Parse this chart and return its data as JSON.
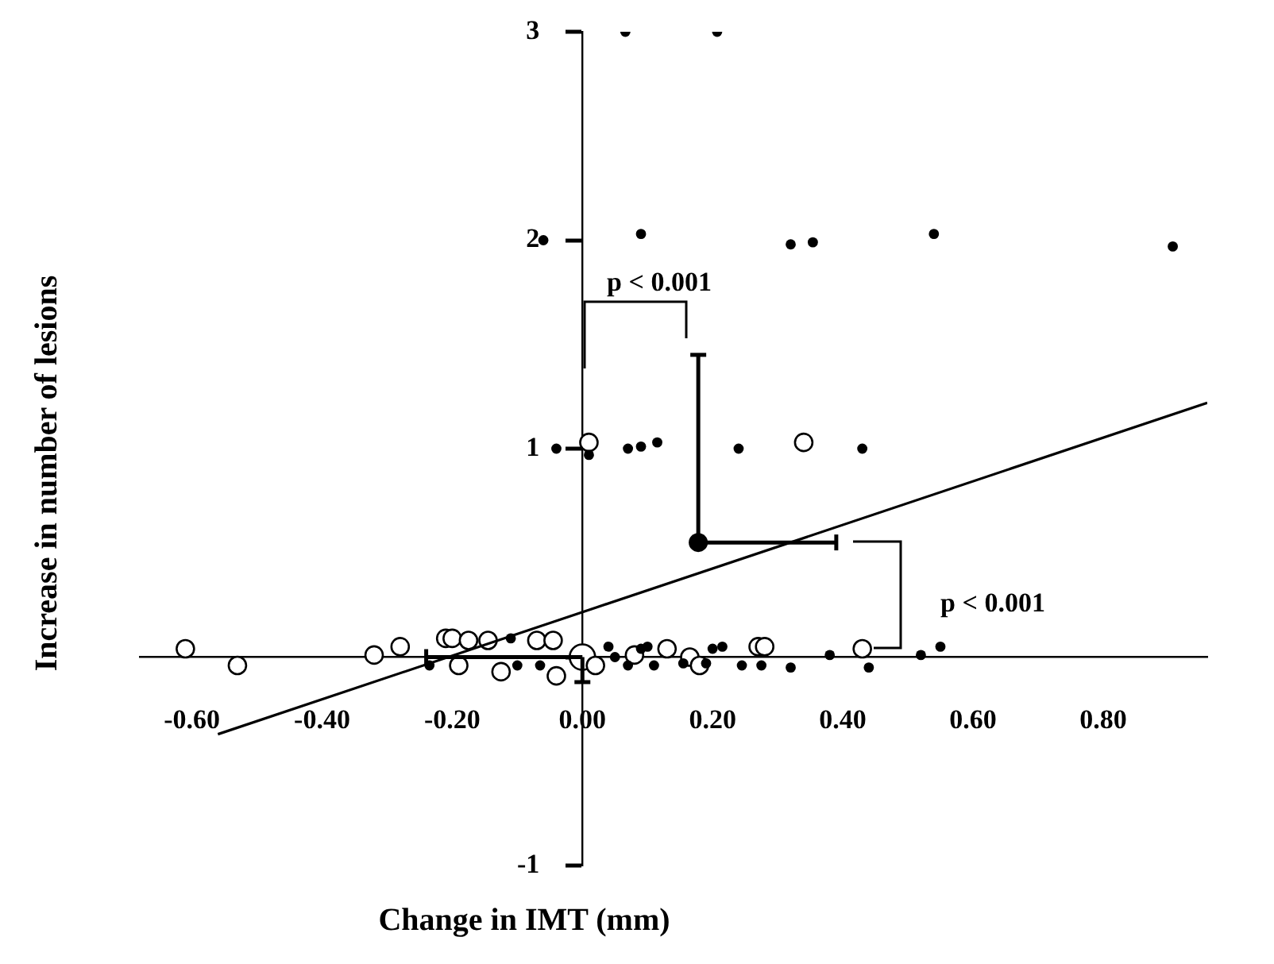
{
  "chart_data": {
    "type": "scatter",
    "xlabel": "Change in IMT (mm)",
    "ylabel": "Increase in number of lesions",
    "xlim": [
      -0.68,
      0.96
    ],
    "ylim": [
      -1,
      3
    ],
    "xticks": [
      {
        "value": -0.6,
        "label": "-0.60"
      },
      {
        "value": -0.4,
        "label": "-0.40"
      },
      {
        "value": -0.2,
        "label": "-0.20"
      },
      {
        "value": 0,
        "label": "0.00"
      },
      {
        "value": 0.2,
        "label": "0.20"
      },
      {
        "value": 0.4,
        "label": "0.40"
      },
      {
        "value": 0.6,
        "label": "0.60"
      },
      {
        "value": 0.8,
        "label": "0.80"
      }
    ],
    "yticks": [
      -1,
      {
        "value": 0,
        "label": null
      },
      1,
      2,
      3
    ],
    "annotations": [
      "p < 0.001",
      "p < 0.001"
    ],
    "series": [
      {
        "type": "scatter",
        "marker": "circle",
        "color": "#000000",
        "x": [
          0.066,
          0.207,
          -0.06,
          0.09,
          0.32,
          0.354,
          0.54,
          0.907,
          -0.04,
          0.01,
          0.07,
          0.09,
          0.115,
          0.24,
          0.43,
          -0.235,
          -0.11,
          -0.1,
          -0.065,
          0.04,
          0.05,
          0.07,
          0.09,
          0.1,
          0.11,
          0.155,
          0.19,
          0.2,
          0.215,
          0.245,
          0.275,
          0.32,
          0.38,
          0.44,
          0.52,
          0.55
        ],
        "values": [
          3,
          3,
          2,
          2.03,
          1.98,
          1.99,
          2.03,
          1.97,
          1,
          0.97,
          1,
          1.01,
          1.03,
          1,
          1,
          -0.04,
          0.09,
          -0.04,
          -0.04,
          0.05,
          0,
          -0.04,
          0.04,
          0.05,
          -0.04,
          -0.03,
          -0.03,
          0.04,
          0.05,
          -0.04,
          -0.04,
          -0.05,
          0.01,
          -0.05,
          0.01,
          0.05
        ]
      },
      {
        "type": "scatter",
        "marker": "circle",
        "color": "#ffffff",
        "x": [
          -0.61,
          -0.53,
          -0.32,
          -0.28,
          -0.21,
          -0.2,
          -0.19,
          -0.175,
          -0.145,
          -0.125,
          -0.07,
          -0.045,
          -0.04,
          0.02,
          0.08,
          0.13,
          0.165,
          0.18,
          0.27,
          0.28,
          0.43,
          0.01,
          0.34
        ],
        "values": [
          0.04,
          -0.04,
          0.01,
          0.05,
          0.09,
          0.09,
          -0.04,
          0.08,
          0.08,
          -0.07,
          0.08,
          0.08,
          -0.09,
          -0.04,
          0.01,
          0.04,
          0,
          -0.04,
          0.05,
          0.05,
          0.04,
          1.03,
          1.03
        ]
      },
      {
        "type": "scatter",
        "marker": "circle",
        "color": "#000000",
        "x": [
          0.178
        ],
        "values": [
          0.55
        ],
        "errors": [
          [
            0.55,
            1.45
          ]
        ],
        "xerrors": [
          [
            0.178,
            0.39
          ]
        ]
      },
      {
        "type": "scatter",
        "marker": "circle",
        "color": "#ffffff",
        "x": [
          0
        ],
        "values": [
          0
        ],
        "errors": [
          [
            -0.12,
            0
          ]
        ],
        "xerrors": [
          [
            -0.24,
            0
          ]
        ]
      },
      {
        "type": "line",
        "marker": "none",
        "color": "#000000",
        "x": [
          -0.56,
          0.96
        ],
        "values": [
          -0.37,
          1.22
        ]
      }
    ]
  }
}
